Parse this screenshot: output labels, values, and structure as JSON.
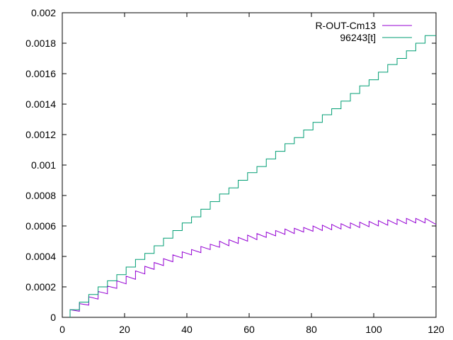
{
  "chart_data": {
    "type": "line",
    "title": "",
    "xlabel": "",
    "ylabel": "",
    "xlim": [
      0,
      120
    ],
    "ylim": [
      0,
      0.002
    ],
    "x_ticks": [
      "0",
      "20",
      "40",
      "60",
      "80",
      "100",
      "120"
    ],
    "y_ticks": [
      "0",
      "0.0002",
      "0.0004",
      "0.0006",
      "0.0008",
      "0.001",
      "0.0012",
      "0.0014",
      "0.0016",
      "0.0018",
      "0.002"
    ],
    "grid": false,
    "legend_position": "top-right",
    "series": [
      {
        "name": "R-OUT-Cm13",
        "color": "#9400d3",
        "style": "sawtooth",
        "points": [
          [
            2.5,
            0
          ],
          [
            2.5,
            5e-05
          ],
          [
            5.5,
            4e-05
          ],
          [
            5.5,
            9e-05
          ],
          [
            8.5,
            8e-05
          ],
          [
            8.5,
            0.000135
          ],
          [
            11.5,
            0.00012
          ],
          [
            11.5,
            0.00017
          ],
          [
            14.5,
            0.000155
          ],
          [
            14.5,
            0.000205
          ],
          [
            17.5,
            0.00019
          ],
          [
            17.5,
            0.00024
          ],
          [
            20.5,
            0.00022
          ],
          [
            20.5,
            0.00027
          ],
          [
            23.5,
            0.00025
          ],
          [
            23.5,
            0.000305
          ],
          [
            26.5,
            0.000285
          ],
          [
            26.5,
            0.000335
          ],
          [
            29.5,
            0.000315
          ],
          [
            29.5,
            0.00036
          ],
          [
            32.5,
            0.00034
          ],
          [
            32.5,
            0.000385
          ],
          [
            35.5,
            0.000365
          ],
          [
            35.5,
            0.00041
          ],
          [
            38.5,
            0.00039
          ],
          [
            38.5,
            0.00043
          ],
          [
            41.5,
            0.00041
          ],
          [
            41.5,
            0.000445
          ],
          [
            44.5,
            0.000425
          ],
          [
            44.5,
            0.000465
          ],
          [
            47.5,
            0.000445
          ],
          [
            47.5,
            0.00048
          ],
          [
            50.5,
            0.00046
          ],
          [
            50.5,
            0.0005
          ],
          [
            53.5,
            0.00047
          ],
          [
            53.5,
            0.00051
          ],
          [
            56.5,
            0.000485
          ],
          [
            56.5,
            0.000525
          ],
          [
            59.5,
            0.0005
          ],
          [
            59.5,
            0.00054
          ],
          [
            62.5,
            0.00051
          ],
          [
            62.5,
            0.00055
          ],
          [
            65.5,
            0.000525
          ],
          [
            65.5,
            0.00056
          ],
          [
            68.5,
            0.000535
          ],
          [
            68.5,
            0.00057
          ],
          [
            71.5,
            0.000545
          ],
          [
            71.5,
            0.00058
          ],
          [
            74.5,
            0.00055
          ],
          [
            74.5,
            0.000585
          ],
          [
            77.5,
            0.00056
          ],
          [
            77.5,
            0.00059
          ],
          [
            80.5,
            0.000565
          ],
          [
            80.5,
            0.0006
          ],
          [
            83.5,
            0.00057
          ],
          [
            83.5,
            0.000605
          ],
          [
            86.5,
            0.000575
          ],
          [
            86.5,
            0.00061
          ],
          [
            89.5,
            0.00058
          ],
          [
            89.5,
            0.000615
          ],
          [
            92.5,
            0.000585
          ],
          [
            92.5,
            0.00062
          ],
          [
            95.5,
            0.00059
          ],
          [
            95.5,
            0.000625
          ],
          [
            98.5,
            0.000595
          ],
          [
            98.5,
            0.00063
          ],
          [
            101.5,
            0.0006
          ],
          [
            101.5,
            0.000635
          ],
          [
            104.5,
            0.000605
          ],
          [
            104.5,
            0.00064
          ],
          [
            107.5,
            0.00061
          ],
          [
            107.5,
            0.000645
          ],
          [
            110.5,
            0.000615
          ],
          [
            110.5,
            0.00065
          ],
          [
            113.5,
            0.00062
          ],
          [
            113.5,
            0.00065
          ],
          [
            116.5,
            0.00062
          ],
          [
            116.5,
            0.00065
          ],
          [
            120,
            0.00061
          ]
        ]
      },
      {
        "name": "96243[t]",
        "color": "#009e73",
        "style": "step",
        "points": [
          [
            2.5,
            0
          ],
          [
            2.5,
            5e-05
          ],
          [
            5.5,
            5e-05
          ],
          [
            5.5,
            0.0001
          ],
          [
            8.5,
            0.0001
          ],
          [
            8.5,
            0.00015
          ],
          [
            11.5,
            0.00015
          ],
          [
            11.5,
            0.0002
          ],
          [
            14.5,
            0.0002
          ],
          [
            14.5,
            0.00024
          ],
          [
            17.5,
            0.00024
          ],
          [
            17.5,
            0.00028
          ],
          [
            20.5,
            0.00028
          ],
          [
            20.5,
            0.00033
          ],
          [
            23.5,
            0.00033
          ],
          [
            23.5,
            0.00038
          ],
          [
            26.5,
            0.00038
          ],
          [
            26.5,
            0.00042
          ],
          [
            29.5,
            0.00042
          ],
          [
            29.5,
            0.00047
          ],
          [
            32.5,
            0.00047
          ],
          [
            32.5,
            0.00052
          ],
          [
            35.5,
            0.00052
          ],
          [
            35.5,
            0.00057
          ],
          [
            38.5,
            0.00057
          ],
          [
            38.5,
            0.00062
          ],
          [
            41.5,
            0.00062
          ],
          [
            41.5,
            0.00066
          ],
          [
            44.5,
            0.00066
          ],
          [
            44.5,
            0.00071
          ],
          [
            47.5,
            0.00071
          ],
          [
            47.5,
            0.00076
          ],
          [
            50.5,
            0.00076
          ],
          [
            50.5,
            0.00081
          ],
          [
            53.5,
            0.00081
          ],
          [
            53.5,
            0.00085
          ],
          [
            56.5,
            0.00085
          ],
          [
            56.5,
            0.0009
          ],
          [
            59.5,
            0.0009
          ],
          [
            59.5,
            0.00095
          ],
          [
            62.5,
            0.00095
          ],
          [
            62.5,
            0.00099
          ],
          [
            65.5,
            0.00099
          ],
          [
            65.5,
            0.00104
          ],
          [
            68.5,
            0.00104
          ],
          [
            68.5,
            0.00109
          ],
          [
            71.5,
            0.00109
          ],
          [
            71.5,
            0.00114
          ],
          [
            74.5,
            0.00114
          ],
          [
            74.5,
            0.00118
          ],
          [
            77.5,
            0.00118
          ],
          [
            77.5,
            0.00123
          ],
          [
            80.5,
            0.00123
          ],
          [
            80.5,
            0.00128
          ],
          [
            83.5,
            0.00128
          ],
          [
            83.5,
            0.00133
          ],
          [
            86.5,
            0.00133
          ],
          [
            86.5,
            0.00137
          ],
          [
            89.5,
            0.00137
          ],
          [
            89.5,
            0.00142
          ],
          [
            92.5,
            0.00142
          ],
          [
            92.5,
            0.00147
          ],
          [
            95.5,
            0.00147
          ],
          [
            95.5,
            0.00152
          ],
          [
            98.5,
            0.00152
          ],
          [
            98.5,
            0.00156
          ],
          [
            101.5,
            0.00156
          ],
          [
            101.5,
            0.00161
          ],
          [
            104.5,
            0.00161
          ],
          [
            104.5,
            0.00166
          ],
          [
            107.5,
            0.00166
          ],
          [
            107.5,
            0.0017
          ],
          [
            110.5,
            0.0017
          ],
          [
            110.5,
            0.00175
          ],
          [
            113.5,
            0.00175
          ],
          [
            113.5,
            0.0018
          ],
          [
            116.5,
            0.0018
          ],
          [
            116.5,
            0.00185
          ],
          [
            120,
            0.00185
          ]
        ]
      }
    ]
  }
}
